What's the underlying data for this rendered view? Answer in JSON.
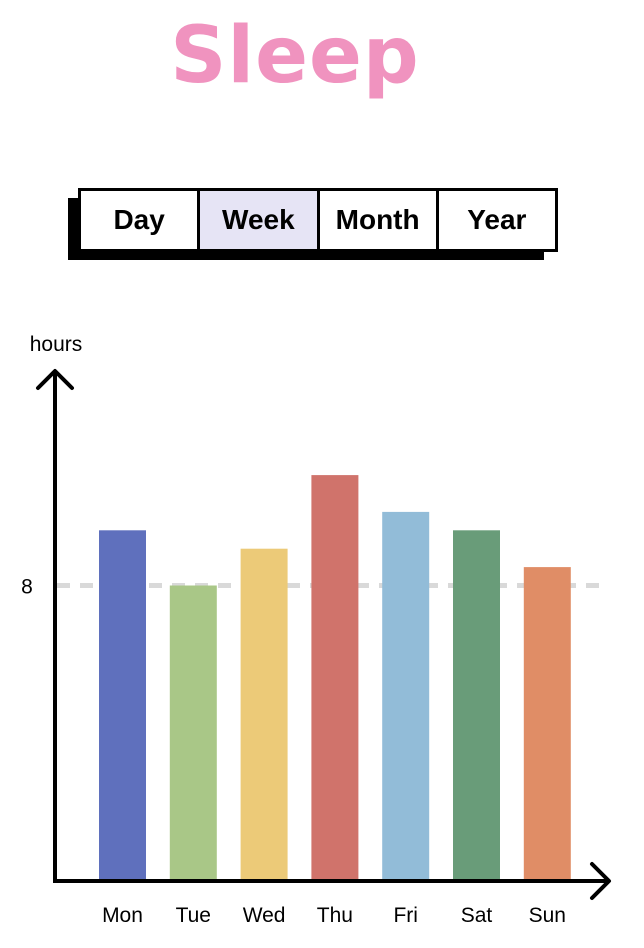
{
  "header": {
    "title": "Sleep"
  },
  "tabs": [
    {
      "label": "Day",
      "active": false
    },
    {
      "label": "Week",
      "active": true
    },
    {
      "label": "Month",
      "active": false
    },
    {
      "label": "Year",
      "active": false
    }
  ],
  "chart_data": {
    "type": "bar",
    "title": "",
    "xlabel": "",
    "ylabel": "hours",
    "ylim": [
      0,
      13.8
    ],
    "yticks": [
      8
    ],
    "reference_line": {
      "value": 8,
      "style": "dashed",
      "color": "#d9d9d9"
    },
    "grid": false,
    "categories": [
      "Mon",
      "Tue",
      "Wed",
      "Thu",
      "Fri",
      "Sat",
      "Sun"
    ],
    "values": [
      9.5,
      8.0,
      9.0,
      11.0,
      10.0,
      9.5,
      8.5
    ],
    "colors": [
      "#5f70bd",
      "#a9c787",
      "#ecca78",
      "#d0736b",
      "#92bcd8",
      "#699c79",
      "#e08d66"
    ]
  }
}
